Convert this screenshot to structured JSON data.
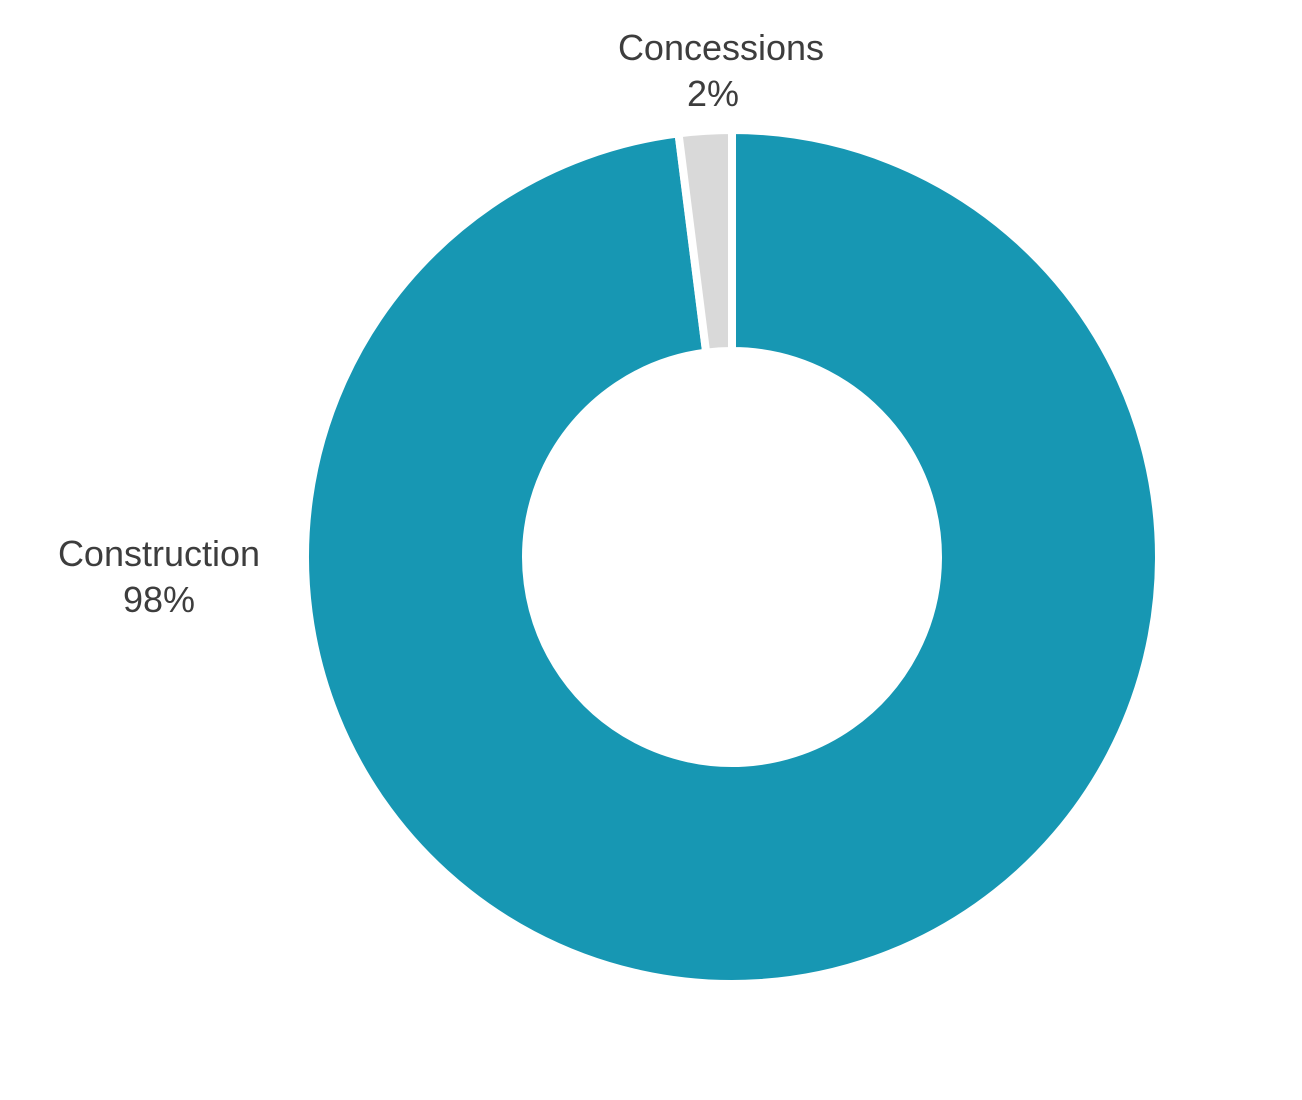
{
  "chart_data": {
    "type": "pie",
    "variant": "donut",
    "title": "",
    "slices": [
      {
        "name": "Construction",
        "value": 98,
        "value_label": "98%",
        "color": "#1797b3"
      },
      {
        "name": "Concessions",
        "value": 2,
        "value_label": "2%",
        "color": "#d9d9d9"
      }
    ],
    "legend": "none",
    "labels": "outside"
  }
}
